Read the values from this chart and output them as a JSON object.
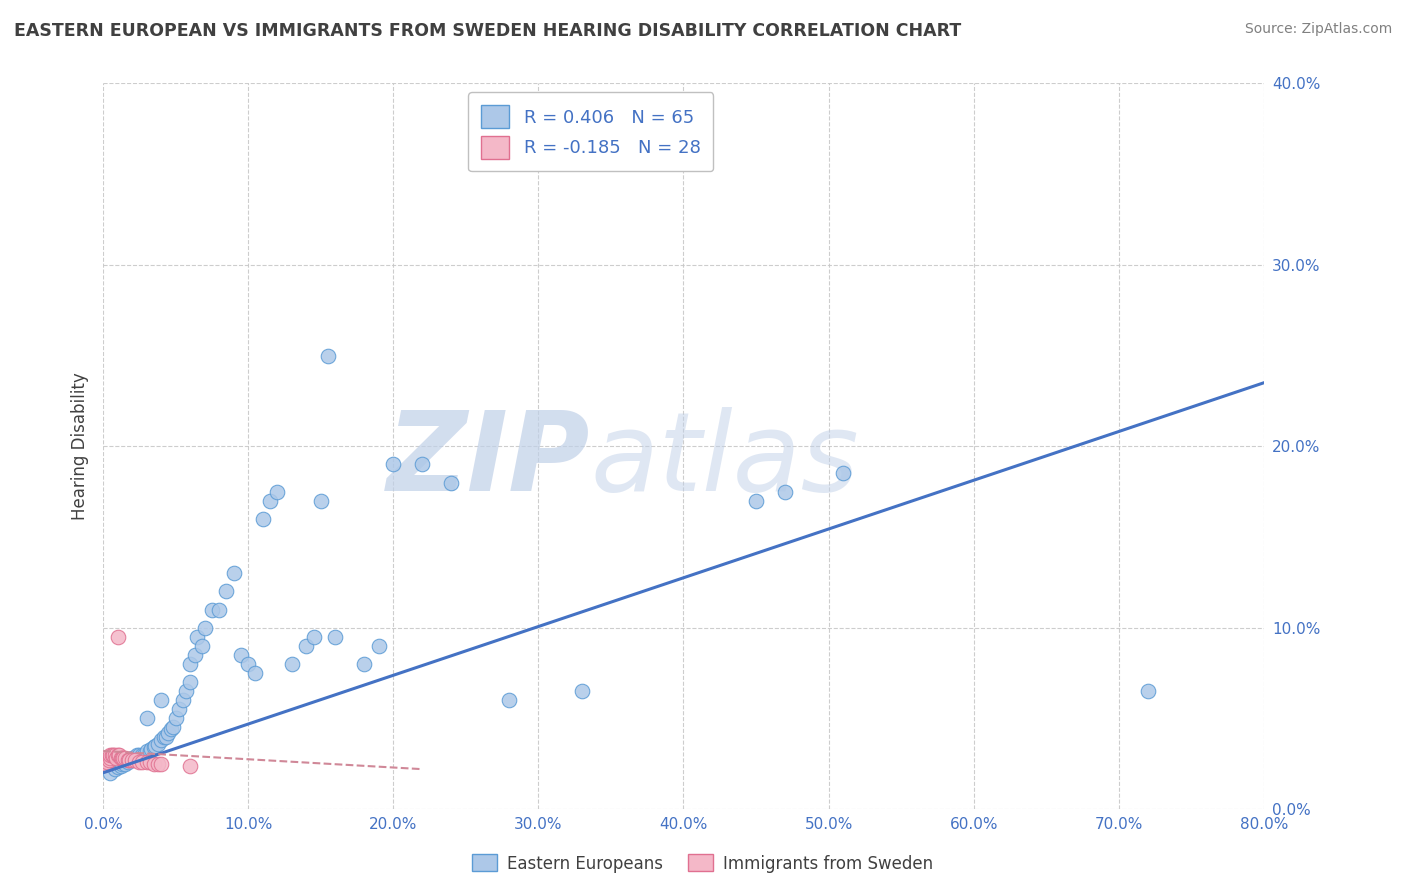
{
  "title": "EASTERN EUROPEAN VS IMMIGRANTS FROM SWEDEN HEARING DISABILITY CORRELATION CHART",
  "source": "Source: ZipAtlas.com",
  "ylabel": "Hearing Disability",
  "xlim": [
    0.0,
    0.8
  ],
  "ylim": [
    0.0,
    0.4
  ],
  "xticks": [
    0.0,
    0.1,
    0.2,
    0.3,
    0.4,
    0.5,
    0.6,
    0.7,
    0.8
  ],
  "yticks": [
    0.0,
    0.1,
    0.2,
    0.3,
    0.4
  ],
  "xtick_labels": [
    "0.0%",
    "10.0%",
    "20.0%",
    "30.0%",
    "40.0%",
    "50.0%",
    "60.0%",
    "70.0%",
    "80.0%"
  ],
  "ytick_labels": [
    "0.0%",
    "10.0%",
    "20.0%",
    "30.0%",
    "40.0%"
  ],
  "series1_label": "Eastern Europeans",
  "series1_R": 0.406,
  "series1_N": 65,
  "series1_color": "#adc8e8",
  "series1_edge_color": "#5b9bd5",
  "series2_label": "Immigrants from Sweden",
  "series2_R": -0.185,
  "series2_N": 28,
  "series2_color": "#f4b8c8",
  "series2_edge_color": "#e07090",
  "trend1_color": "#4472c4",
  "trend2_color": "#d08898",
  "watermark_zip": "ZIP",
  "watermark_atlas": "atlas",
  "watermark_color_zip": "#c8d8ee",
  "watermark_color_atlas": "#c8d8ee",
  "background_color": "#ffffff",
  "title_color": "#404040",
  "source_color": "#808080",
  "blue_scatter_x": [
    0.005,
    0.008,
    0.01,
    0.012,
    0.013,
    0.015,
    0.017,
    0.018,
    0.02,
    0.022,
    0.023,
    0.025,
    0.027,
    0.028,
    0.03,
    0.03,
    0.032,
    0.033,
    0.035,
    0.036,
    0.038,
    0.04,
    0.04,
    0.042,
    0.043,
    0.045,
    0.047,
    0.048,
    0.05,
    0.052,
    0.055,
    0.057,
    0.06,
    0.06,
    0.063,
    0.065,
    0.068,
    0.07,
    0.075,
    0.08,
    0.085,
    0.09,
    0.095,
    0.1,
    0.105,
    0.11,
    0.115,
    0.12,
    0.13,
    0.14,
    0.145,
    0.15,
    0.155,
    0.16,
    0.18,
    0.19,
    0.2,
    0.22,
    0.24,
    0.28,
    0.33,
    0.45,
    0.47,
    0.51,
    0.72
  ],
  "blue_scatter_y": [
    0.02,
    0.022,
    0.023,
    0.024,
    0.025,
    0.025,
    0.026,
    0.027,
    0.028,
    0.028,
    0.03,
    0.03,
    0.03,
    0.03,
    0.032,
    0.05,
    0.032,
    0.033,
    0.034,
    0.035,
    0.036,
    0.038,
    0.06,
    0.04,
    0.04,
    0.042,
    0.044,
    0.045,
    0.05,
    0.055,
    0.06,
    0.065,
    0.07,
    0.08,
    0.085,
    0.095,
    0.09,
    0.1,
    0.11,
    0.11,
    0.12,
    0.13,
    0.085,
    0.08,
    0.075,
    0.16,
    0.17,
    0.175,
    0.08,
    0.09,
    0.095,
    0.17,
    0.25,
    0.095,
    0.08,
    0.09,
    0.19,
    0.19,
    0.18,
    0.06,
    0.065,
    0.17,
    0.175,
    0.185,
    0.065
  ],
  "pink_scatter_x": [
    0.002,
    0.003,
    0.004,
    0.005,
    0.005,
    0.006,
    0.007,
    0.008,
    0.009,
    0.01,
    0.011,
    0.012,
    0.013,
    0.014,
    0.015,
    0.017,
    0.018,
    0.02,
    0.022,
    0.025,
    0.027,
    0.03,
    0.032,
    0.035,
    0.038,
    0.04,
    0.06,
    0.01
  ],
  "pink_scatter_y": [
    0.025,
    0.026,
    0.027,
    0.028,
    0.03,
    0.03,
    0.03,
    0.03,
    0.028,
    0.03,
    0.03,
    0.028,
    0.028,
    0.028,
    0.028,
    0.027,
    0.027,
    0.027,
    0.027,
    0.026,
    0.026,
    0.026,
    0.026,
    0.025,
    0.025,
    0.025,
    0.024,
    0.095
  ],
  "trend1_x_start": 0.0,
  "trend1_y_start": 0.02,
  "trend1_x_end": 0.8,
  "trend1_y_end": 0.235,
  "trend2_x_start": 0.0,
  "trend2_y_start": 0.032,
  "trend2_x_end": 0.22,
  "trend2_y_end": 0.022
}
